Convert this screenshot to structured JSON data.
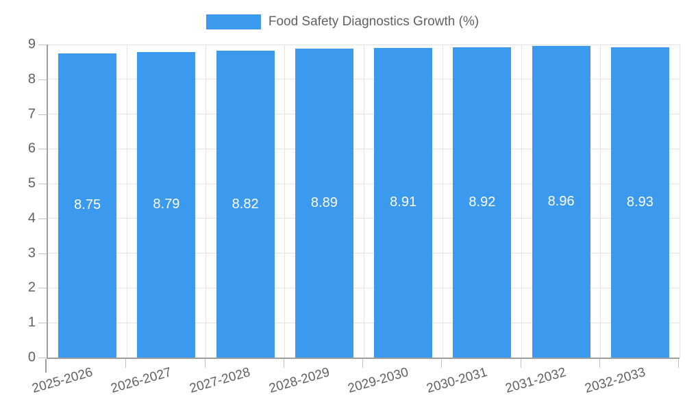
{
  "legend": {
    "label": "Food Safety Diagnostics Growth (%)"
  },
  "chart_data": {
    "type": "bar",
    "title": "Food Safety Diagnostics Growth (%)",
    "categories": [
      "2025-2026",
      "2026-2027",
      "2027-2028",
      "2028-2029",
      "2029-2030",
      "2030-2031",
      "2031-2032",
      "2032-2033"
    ],
    "values": [
      8.75,
      8.79,
      8.82,
      8.89,
      8.91,
      8.92,
      8.96,
      8.93
    ],
    "value_labels": [
      "8.75",
      "8.79",
      "8.82",
      "8.89",
      "8.91",
      "8.92",
      "8.96",
      "8.93"
    ],
    "xlabel": "",
    "ylabel": "",
    "ylim": [
      0,
      9
    ],
    "yticks": [
      0,
      1,
      2,
      3,
      4,
      5,
      6,
      7,
      8,
      9
    ],
    "grid": true,
    "legend_position": "top-center",
    "bar_color": "#3b99ee",
    "value_label_color": "#ffffff",
    "axis_text_color": "#616161",
    "grid_color": "#e3e3e3",
    "axis_line_color": "#9e9e9e",
    "tick_color": "#c2c2c2"
  }
}
